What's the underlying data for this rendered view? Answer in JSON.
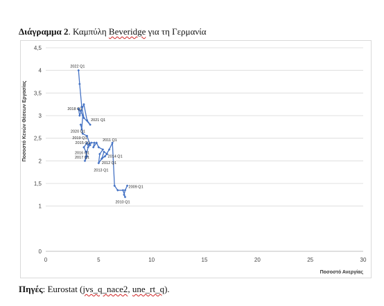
{
  "caption": {
    "bold": "Διάγραμμα 2",
    "sep": ". ",
    "pre": "Καμπύλη ",
    "beveridge": "Beveridge",
    "post": " για τη Γερμανία"
  },
  "source": {
    "bold": "Πηγές",
    "pre": ": Eurostat (",
    "code1": "jvs_q_nace2",
    "mid": ", ",
    "code2": "une_rt_q",
    "post": ")."
  },
  "chart_data": {
    "type": "line",
    "xlabel": "Ποσοστό Ανεργίας",
    "ylabel": "Ποσοστό Κενών Θέσεων Εργασίας",
    "xlim": [
      0,
      30
    ],
    "ylim": [
      0,
      4.5
    ],
    "xticks": [
      0,
      5,
      10,
      15,
      20,
      25,
      30
    ],
    "yticks": [
      0,
      1,
      1.5,
      2,
      2.5,
      3,
      3.5,
      4,
      4.5
    ],
    "ytick_labels": [
      "0",
      "1",
      "1,5",
      "2",
      "2,5",
      "3",
      "3,5",
      "4",
      "4,5"
    ],
    "grid": true,
    "legend": "none",
    "marker": "diamond",
    "line_color": "#4472c4",
    "points": [
      {
        "x": 7.7,
        "y": 1.45,
        "label": "2009 Q1"
      },
      {
        "x": 7.5,
        "y": 1.35
      },
      {
        "x": 7.4,
        "y": 1.25
      },
      {
        "x": 7.5,
        "y": 1.2,
        "label": "2010 Q1"
      },
      {
        "x": 7.3,
        "y": 1.35
      },
      {
        "x": 6.8,
        "y": 1.35
      },
      {
        "x": 6.5,
        "y": 1.45
      },
      {
        "x": 6.3,
        "y": 2.4,
        "label": "2011 Q1"
      },
      {
        "x": 6.0,
        "y": 2.25
      },
      {
        "x": 5.6,
        "y": 2.1
      },
      {
        "x": 5.3,
        "y": 2.05,
        "label": "2012 Q1"
      },
      {
        "x": 5.5,
        "y": 2.2
      },
      {
        "x": 5.8,
        "y": 2.15,
        "label": "2014 Q1"
      },
      {
        "x": 5.3,
        "y": 2.05
      },
      {
        "x": 5.0,
        "y": 1.95,
        "label": "2013 Q1"
      },
      {
        "x": 5.1,
        "y": 2.15
      },
      {
        "x": 5.4,
        "y": 2.25
      },
      {
        "x": 5.0,
        "y": 2.3
      },
      {
        "x": 4.8,
        "y": 2.4
      },
      {
        "x": 4.5,
        "y": 2.3
      },
      {
        "x": 4.6,
        "y": 2.4
      },
      {
        "x": 4.3,
        "y": 2.4
      },
      {
        "x": 4.0,
        "y": 2.35
      },
      {
        "x": 3.9,
        "y": 2.4,
        "label": "2015 Q1"
      },
      {
        "x": 3.6,
        "y": 2.3
      },
      {
        "x": 3.8,
        "y": 2.2,
        "label": "2016 Q1"
      },
      {
        "x": 3.9,
        "y": 2.1
      },
      {
        "x": 3.7,
        "y": 2.0
      },
      {
        "x": 3.8,
        "y": 2.1,
        "label": "2017 Q1"
      },
      {
        "x": 4.0,
        "y": 2.3
      },
      {
        "x": 4.2,
        "y": 2.35
      },
      {
        "x": 3.9,
        "y": 2.55
      },
      {
        "x": 3.5,
        "y": 2.6,
        "label": "2019 Q1"
      },
      {
        "x": 3.3,
        "y": 2.8
      },
      {
        "x": 3.4,
        "y": 2.7,
        "label": "2020 Q1"
      },
      {
        "x": 3.5,
        "y": 3.0
      },
      {
        "x": 3.3,
        "y": 3.1
      },
      {
        "x": 3.1,
        "y": 3.15,
        "label": "2018 Q1"
      },
      {
        "x": 3.2,
        "y": 3.0
      },
      {
        "x": 3.6,
        "y": 3.25
      },
      {
        "x": 3.9,
        "y": 2.9
      },
      {
        "x": 4.2,
        "y": 2.8,
        "label": "2021 Q1"
      },
      {
        "x": 3.6,
        "y": 2.95
      },
      {
        "x": 3.4,
        "y": 3.2
      },
      {
        "x": 3.2,
        "y": 3.7
      },
      {
        "x": 3.1,
        "y": 4.0,
        "label": "2022 Q1"
      }
    ]
  }
}
